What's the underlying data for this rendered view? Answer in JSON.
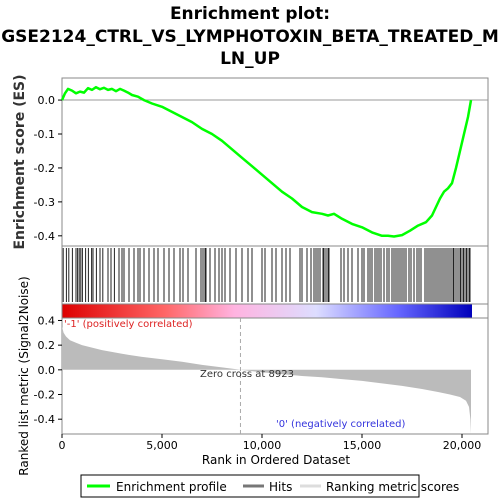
{
  "chart_data": [
    {
      "type": "line",
      "panel": "enrichment",
      "title_lines": [
        "Enrichment plot:",
        "GSE2124_CTRL_VS_LYMPHOTOXIN_BETA_TREATED_M",
        "LN_UP"
      ],
      "ylabel": "Enrichment score (ES)",
      "xlim": [
        0,
        20500
      ],
      "ylim": [
        -0.43,
        0.065
      ],
      "yticks": [
        0.0,
        -0.1,
        -0.2,
        -0.3,
        -0.4
      ],
      "ytick_labels": [
        "0.0",
        "-0.1",
        "-0.2",
        "-0.3",
        "-0.4"
      ],
      "line_color": "#00ff00",
      "grid": false,
      "series": [
        {
          "name": "Enrichment profile",
          "x": [
            0,
            150,
            300,
            500,
            700,
            900,
            1100,
            1300,
            1500,
            1700,
            1900,
            2100,
            2300,
            2500,
            2700,
            2900,
            3100,
            3300,
            3500,
            3800,
            4100,
            4500,
            5000,
            5500,
            6000,
            6500,
            7000,
            7500,
            8000,
            8500,
            9000,
            9500,
            10000,
            10500,
            11000,
            11500,
            12000,
            12500,
            13000,
            13300,
            13600,
            14000,
            14500,
            15000,
            15500,
            16000,
            16300,
            16600,
            17000,
            17400,
            17800,
            18200,
            18500,
            18700,
            18900,
            19100,
            19300,
            19500,
            19700,
            19900,
            20100,
            20300,
            20450
          ],
          "y": [
            0.0,
            0.02,
            0.033,
            0.028,
            0.02,
            0.025,
            0.022,
            0.035,
            0.03,
            0.038,
            0.032,
            0.036,
            0.03,
            0.033,
            0.026,
            0.033,
            0.028,
            0.022,
            0.015,
            0.01,
            0.0,
            -0.01,
            -0.02,
            -0.035,
            -0.05,
            -0.065,
            -0.085,
            -0.1,
            -0.12,
            -0.145,
            -0.17,
            -0.195,
            -0.22,
            -0.245,
            -0.27,
            -0.29,
            -0.315,
            -0.33,
            -0.335,
            -0.34,
            -0.335,
            -0.35,
            -0.365,
            -0.375,
            -0.39,
            -0.4,
            -0.4,
            -0.402,
            -0.398,
            -0.385,
            -0.37,
            -0.36,
            -0.34,
            -0.315,
            -0.29,
            -0.27,
            -0.26,
            -0.245,
            -0.2,
            -0.15,
            -0.1,
            -0.05,
            0.0
          ]
        }
      ]
    },
    {
      "type": "heatmap",
      "panel": "hits",
      "legend_label": "Hits",
      "hit_positions": [
        60,
        220,
        340,
        520,
        700,
        780,
        860,
        940,
        1020,
        1180,
        1320,
        1480,
        1550,
        1720,
        1900,
        2040,
        2300,
        2450,
        2620,
        2850,
        3000,
        3100,
        3350,
        3600,
        3800,
        3900,
        4100,
        4350,
        4600,
        4800,
        5100,
        5350,
        5600,
        5900,
        6050,
        6300,
        6700,
        6950,
        7050,
        7150,
        7200,
        7400,
        7650,
        7850,
        8000,
        8150,
        8400,
        8700,
        9000,
        9300,
        9500,
        10000,
        10150,
        10500,
        10700,
        11000,
        11200,
        11400,
        11900,
        12000,
        12250,
        12450,
        12600,
        12700,
        12800,
        12900,
        13050,
        13100,
        13200,
        13300,
        13350,
        13950,
        14100,
        14300,
        14500,
        14800,
        15000,
        15100,
        15300,
        15400,
        15500,
        15650,
        15750,
        15850,
        15950,
        16100,
        16250,
        16350,
        16500,
        16600,
        16700,
        16800,
        16900,
        17000,
        17100,
        17200,
        17350,
        17450,
        17600,
        17750,
        17850,
        17950,
        18150,
        18250,
        18350,
        18450,
        18550,
        18650,
        18750,
        18850,
        18950,
        19050,
        19150,
        19250,
        19350,
        19450,
        19550,
        19600,
        19700,
        19800,
        19900,
        19950,
        20050,
        20100,
        20200,
        20250,
        20350,
        20400
      ],
      "gradient_colors": [
        "#dd0000",
        "#ff6666",
        "#ffb3e0",
        "#ddddff",
        "#6666ff",
        "#0000bb"
      ]
    },
    {
      "type": "area",
      "panel": "ranked_list",
      "ylabel": "Ranked list metric (Signal2Noise)",
      "xlabel": "Rank in Ordered Dataset",
      "xlim": [
        0,
        20500
      ],
      "ylim": [
        -0.52,
        0.42
      ],
      "yticks": [
        0.4,
        0.2,
        0.0,
        -0.2,
        -0.4
      ],
      "ytick_labels": [
        "0.4",
        "0.2",
        "0.0",
        "-0.2",
        "-0.4"
      ],
      "xticks": [
        0,
        5000,
        10000,
        15000,
        20000
      ],
      "xtick_labels": [
        "0",
        "5,000",
        "10,000",
        "15,000",
        "20,000"
      ],
      "fill_color": "#bbbbbb",
      "x": [
        0,
        80,
        200,
        400,
        700,
        1000,
        1500,
        2000,
        3000,
        4000,
        5000,
        6000,
        7000,
        8000,
        8923,
        10000,
        11000,
        12000,
        13000,
        14000,
        15000,
        16000,
        17000,
        18000,
        18800,
        19400,
        19900,
        20200,
        20350,
        20420,
        20450
      ],
      "y": [
        0.35,
        0.3,
        0.27,
        0.24,
        0.22,
        0.2,
        0.18,
        0.16,
        0.13,
        0.105,
        0.085,
        0.065,
        0.04,
        0.02,
        0.0,
        -0.02,
        -0.035,
        -0.05,
        -0.06,
        -0.075,
        -0.09,
        -0.11,
        -0.13,
        -0.155,
        -0.18,
        -0.2,
        -0.22,
        -0.25,
        -0.3,
        -0.4,
        -0.52
      ],
      "zero_cross": 8923,
      "annotations": {
        "zero_cross": "Zero cross at 8923",
        "positive": "'-1' (positively correlated)",
        "negative": "'0' (negatively correlated)"
      }
    }
  ],
  "legend": {
    "items": [
      {
        "label": "Enrichment profile",
        "color": "#00ff00"
      },
      {
        "label": "Hits",
        "color": "#777777"
      },
      {
        "label": "Ranking metric scores",
        "color": "#dddddd"
      }
    ]
  },
  "colors": {
    "positive_text": "#dd2222",
    "negative_text": "#3333dd",
    "frame": "#888888"
  }
}
